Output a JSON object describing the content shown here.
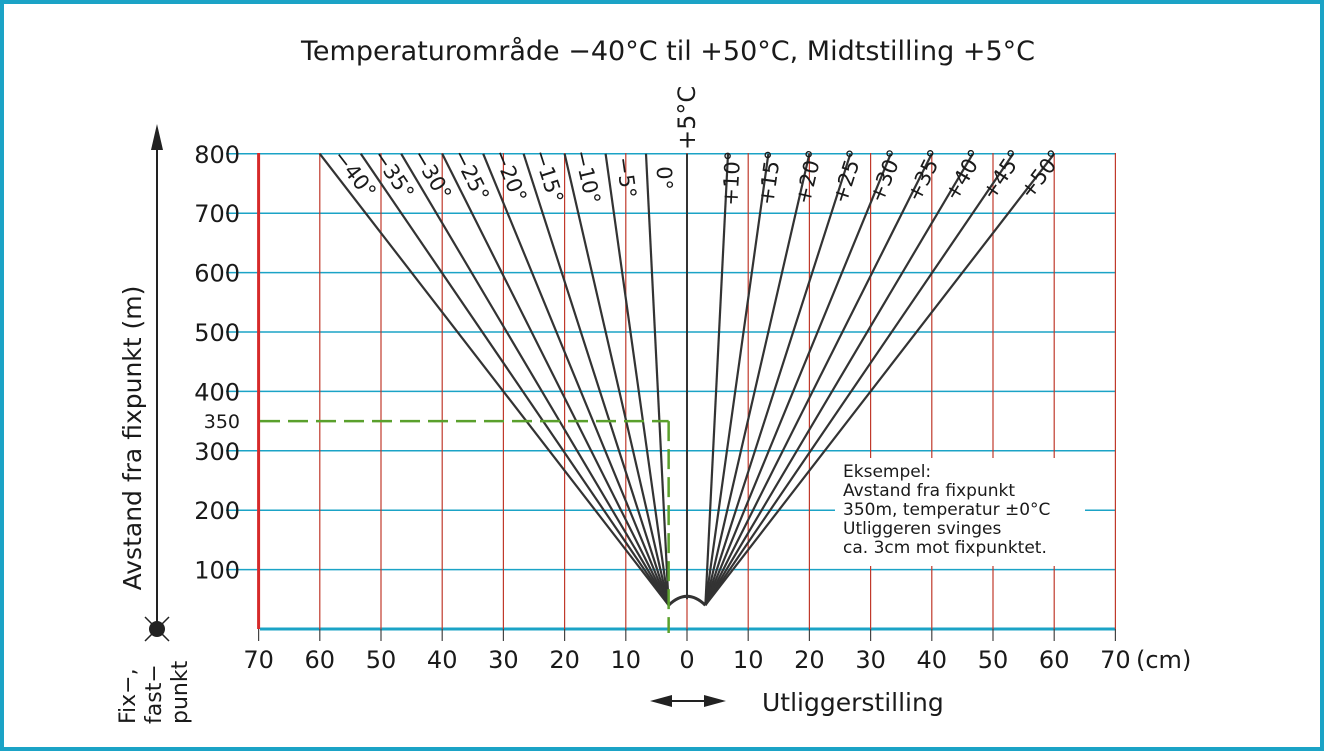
{
  "title": "Temperaturområde −40°C til +50°C, Midtstilling +5°C",
  "y_axis_label": "Avstand fra fixpunkt (m)",
  "x_axis_label": "Utliggerstilling",
  "x_unit": "(cm)",
  "fixpoint_label": [
    "Fix−,",
    "fast−",
    "punkt"
  ],
  "mid_label": "+5°C",
  "y_ticks": [
    100,
    200,
    300,
    400,
    500,
    600,
    700,
    800
  ],
  "y_example_tick": "350",
  "x_ticks": [
    "70",
    "60",
    "50",
    "40",
    "30",
    "20",
    "10",
    "0",
    "10",
    "20",
    "30",
    "40",
    "50",
    "60",
    "70"
  ],
  "x_tick_values": [
    -70,
    -60,
    -50,
    -40,
    -30,
    -20,
    -10,
    0,
    10,
    20,
    30,
    40,
    50,
    60,
    70
  ],
  "colors": {
    "frame": "#1ba3c6",
    "hgrid": "#1ba3c6",
    "vgrid": "#c0392b",
    "fan": "#333333",
    "example": "#5aa02c"
  },
  "fan_lines": [
    {
      "label": "−40°",
      "x_top": -60
    },
    {
      "label": "−35°",
      "x_top": -53.3
    },
    {
      "label": "−30°",
      "x_top": -46.7
    },
    {
      "label": "−25°",
      "x_top": -40
    },
    {
      "label": "−20°",
      "x_top": -33.3
    },
    {
      "label": "−15°",
      "x_top": -26.7
    },
    {
      "label": "−10°",
      "x_top": -20
    },
    {
      "label": "−5°",
      "x_top": -13.3
    },
    {
      "label": "0°",
      "x_top": -6.7
    },
    {
      "label": "+10°",
      "x_top": 6.7
    },
    {
      "label": "+15°",
      "x_top": 13.3
    },
    {
      "label": "+20°",
      "x_top": 20
    },
    {
      "label": "+25°",
      "x_top": 26.7
    },
    {
      "label": "+30°",
      "x_top": 33.3
    },
    {
      "label": "+35°",
      "x_top": 40
    },
    {
      "label": "+40°",
      "x_top": 46.7
    },
    {
      "label": "+45°",
      "x_top": 53.3
    },
    {
      "label": "+50°",
      "x_top": 60
    }
  ],
  "example": {
    "lines": [
      "Eksempel:",
      "Avstand fra fixpunkt",
      "350m, temperatur ±0°C",
      "Utliggeren svinges",
      "ca. 3cm mot fixpunktet."
    ],
    "distance_m": 350,
    "offset_cm": -3
  }
}
